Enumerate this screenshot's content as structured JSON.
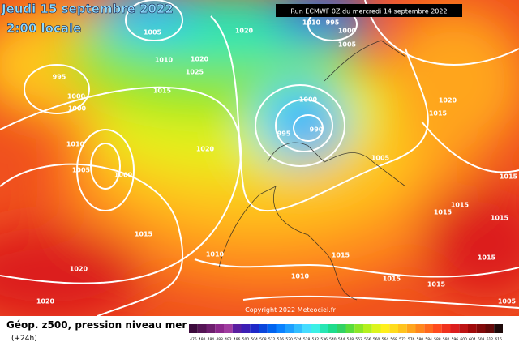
{
  "header": {
    "title": "Jeudi 15 septembre 2022",
    "subtitle": "2:00 locale",
    "run": "Run ECMWF 0Z du mercredi 14 septembre 2022"
  },
  "isobar_labels": [
    995,
    1000,
    1000,
    1010,
    1005,
    1000,
    1005,
    1010,
    1020,
    1025,
    1015,
    1020,
    1020,
    1010,
    995,
    1000,
    1005,
    1000,
    995,
    990,
    1005,
    1020,
    1015,
    1015,
    1015,
    1015,
    1015,
    1015,
    1010,
    1020,
    1020,
    1010,
    1015,
    1015,
    1015,
    1015,
    1005
  ],
  "copyright": "Copyright 2022 Meteociel.fr",
  "legend": {
    "title": "Géop. z500, pression niveau mer",
    "step": "(+24h)",
    "scale": [
      {
        "label": 476,
        "color": "#3c0a3c"
      },
      {
        "label": 480,
        "color": "#551455"
      },
      {
        "label": 484,
        "color": "#6e1e6e"
      },
      {
        "label": 488,
        "color": "#8c288c"
      },
      {
        "label": 492,
        "color": "#a03ca0"
      },
      {
        "label": 496,
        "color": "#5a1ea0"
      },
      {
        "label": 500,
        "color": "#3c1eb4"
      },
      {
        "label": 504,
        "color": "#1e28c8"
      },
      {
        "label": 508,
        "color": "#0a46dc"
      },
      {
        "label": 512,
        "color": "#0064f0"
      },
      {
        "label": 516,
        "color": "#0a82ff"
      },
      {
        "label": 520,
        "color": "#1ea0ff"
      },
      {
        "label": 524,
        "color": "#32beff"
      },
      {
        "label": 528,
        "color": "#46dcff"
      },
      {
        "label": 532,
        "color": "#3cf0e6"
      },
      {
        "label": 536,
        "color": "#28e6b4"
      },
      {
        "label": 540,
        "color": "#1edc8c"
      },
      {
        "label": 544,
        "color": "#32d264"
      },
      {
        "label": 548,
        "color": "#5adc3c"
      },
      {
        "label": 552,
        "color": "#8ce628"
      },
      {
        "label": 556,
        "color": "#b4f01e"
      },
      {
        "label": 560,
        "color": "#dcf51e"
      },
      {
        "label": 564,
        "color": "#fff01e"
      },
      {
        "label": 568,
        "color": "#ffdc1e"
      },
      {
        "label": 572,
        "color": "#ffc31e"
      },
      {
        "label": 576,
        "color": "#ffa51e"
      },
      {
        "label": 580,
        "color": "#ff871e"
      },
      {
        "label": 584,
        "color": "#ff691e"
      },
      {
        "label": 588,
        "color": "#ff4b1e"
      },
      {
        "label": 592,
        "color": "#f0321e"
      },
      {
        "label": 596,
        "color": "#dc1e1e"
      },
      {
        "label": 600,
        "color": "#be1414"
      },
      {
        "label": 604,
        "color": "#a00a0a"
      },
      {
        "label": 608,
        "color": "#820a0a"
      },
      {
        "label": 612,
        "color": "#640a0a"
      },
      {
        "label": 616,
        "color": "#1e0a0a"
      }
    ]
  }
}
